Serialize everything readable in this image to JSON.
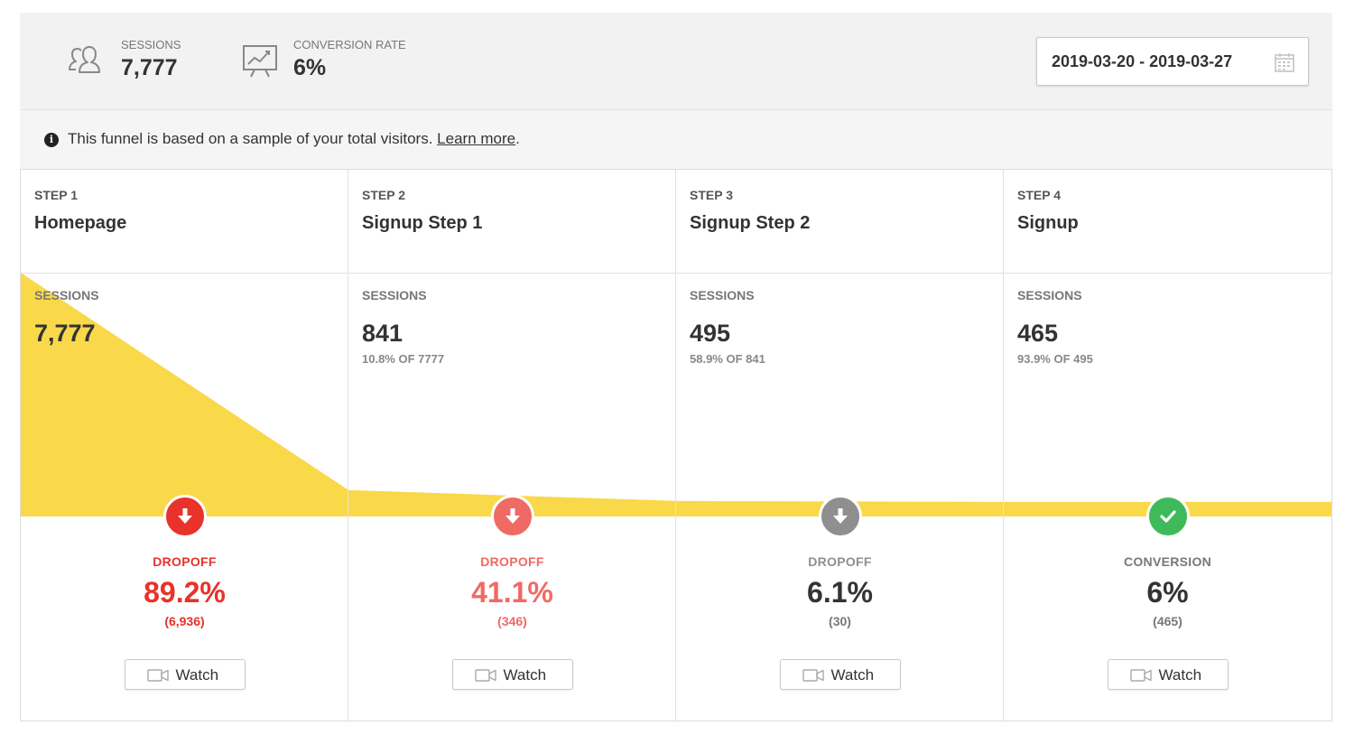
{
  "header": {
    "sessions": {
      "label": "SESSIONS",
      "value": "7,777",
      "icon": "users-icon"
    },
    "conversion_rate": {
      "label": "CONVERSION RATE",
      "value": "6%",
      "icon": "presentation-chart-icon"
    },
    "date_range": {
      "value": "2019-03-20 - 2019-03-27",
      "icon": "calendar-icon"
    }
  },
  "notice": {
    "icon": "info-icon",
    "text": "This funnel is based on a sample of your total visitors.",
    "link": "Learn more",
    "suffix": "."
  },
  "steps": [
    {
      "step_label": "STEP 1",
      "name": "Homepage",
      "sessions_label": "SESSIONS",
      "sessions": "7,777",
      "percent_of": "",
      "metric_label": "DROPOFF",
      "metric_value": "89.2%",
      "metric_count": "(6,936)",
      "badge_icon": "arrow-down-icon",
      "color": "#e8322a",
      "watch_label": "Watch"
    },
    {
      "step_label": "STEP 2",
      "name": "Signup Step 1",
      "sessions_label": "SESSIONS",
      "sessions": "841",
      "percent_of": "10.8% OF 7777",
      "metric_label": "DROPOFF",
      "metric_value": "41.1%",
      "metric_count": "(346)",
      "badge_icon": "arrow-down-icon",
      "color": "#ef6a64",
      "watch_label": "Watch"
    },
    {
      "step_label": "STEP 3",
      "name": "Signup Step 2",
      "sessions_label": "SESSIONS",
      "sessions": "495",
      "percent_of": "58.9% OF 841",
      "metric_label": "DROPOFF",
      "metric_value": "6.1%",
      "metric_count": "(30)",
      "badge_icon": "arrow-down-icon",
      "color": "#8f8f8f",
      "value_color": "#333333",
      "watch_label": "Watch"
    },
    {
      "step_label": "STEP 4",
      "name": "Signup",
      "sessions_label": "SESSIONS",
      "sessions": "465",
      "percent_of": "93.9% OF 495",
      "metric_label": "CONVERSION",
      "metric_value": "6%",
      "metric_count": "(465)",
      "badge_icon": "checkmark-icon",
      "color": "#3fba5a",
      "label_color": "#777777",
      "value_color": "#333333",
      "count_color": "#777777",
      "watch_label": "Watch"
    }
  ],
  "chart_data": {
    "type": "area",
    "categories": [
      "Homepage",
      "Signup Step 1",
      "Signup Step 2",
      "Signup"
    ],
    "values": [
      7777,
      841,
      495,
      465
    ],
    "color": "#f9d94a"
  }
}
